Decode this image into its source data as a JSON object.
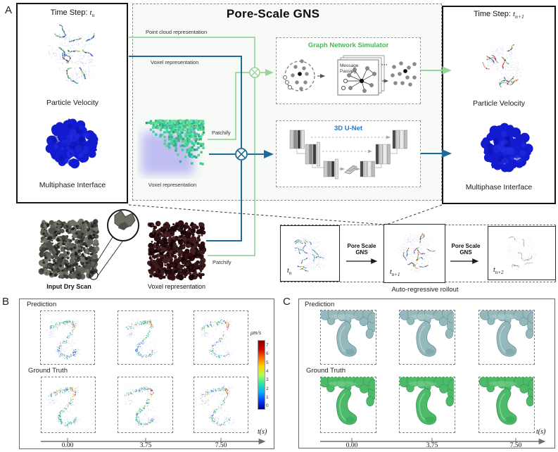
{
  "colors": {
    "green_line": "#98d49a",
    "green_accent": "#4bb657",
    "blue_line": "#1d6b99",
    "blue_accent": "#1e7ad4",
    "blob_blue": "#131bd0",
    "teal_surface": "#93b9bd",
    "teal_surface_dark": "#5f868d",
    "teal_surface_light": "#cfe0e2",
    "green_surface": "#4cba68",
    "green_surface_dark": "#2f8f4b",
    "green_surface_light": "#a8e4b8",
    "jet": [
      "#8b0000",
      "#d40000",
      "#ff6a00",
      "#ffd400",
      "#aaff4c",
      "#2ee6a0",
      "#00b4ff",
      "#0040ff",
      "#00008b"
    ]
  },
  "panelA": {
    "label": "A",
    "title": "Pore-Scale GNS",
    "time_var": "t",
    "left_box": {
      "time_prefix": "Time Step: ",
      "time_sub": "n",
      "top_caption": "Particle Velocity",
      "bottom_caption": "Multiphase Interface"
    },
    "right_box": {
      "time_prefix": "Time Step: ",
      "time_sub": "n+1",
      "top_caption": "Particle Velocity",
      "bottom_caption": "Multiphase Interface"
    },
    "wire_labels": {
      "point_cloud": "Point cloud representation",
      "voxel": "Voxel representation",
      "patchify_mid": "Patchify",
      "patchify_bottom": "Patchify"
    },
    "gns_box": {
      "title": "Graph Network Simulator",
      "card_line1": "Message",
      "card_line2": "Passing",
      "ellipsis": "···"
    },
    "unet_box": {
      "title": "3D U-Net"
    },
    "mid_voxel_caption": "Voxel representation",
    "dry_scan_caption": "Input Dry Scan",
    "dry_voxel_caption": "Voxel representation",
    "rollout": {
      "caption": "Auto-regressive rollout",
      "arrow_label_top": "Pore Scale",
      "arrow_label_bottom": "GNS",
      "steps": [
        {
          "sub": "n"
        },
        {
          "sub": "n+1"
        },
        {
          "sub": "n+2"
        }
      ]
    }
  },
  "panelB": {
    "label": "B",
    "prediction_label": "Prediction",
    "ground_truth_label": "Ground Truth",
    "colorbar": {
      "unit": "μm/s",
      "ticks": [
        "7",
        "6",
        "5",
        "4",
        "3",
        "2",
        "1",
        "0"
      ]
    },
    "axis": {
      "label": "t(s)",
      "ticks": [
        "0.00",
        "3.75",
        "7.50"
      ]
    }
  },
  "panelC": {
    "label": "C",
    "prediction_label": "Prediction",
    "ground_truth_label": "Ground Truth",
    "axis": {
      "label": "t(s)",
      "ticks": [
        "0.00",
        "3.75",
        "7.50"
      ]
    }
  }
}
